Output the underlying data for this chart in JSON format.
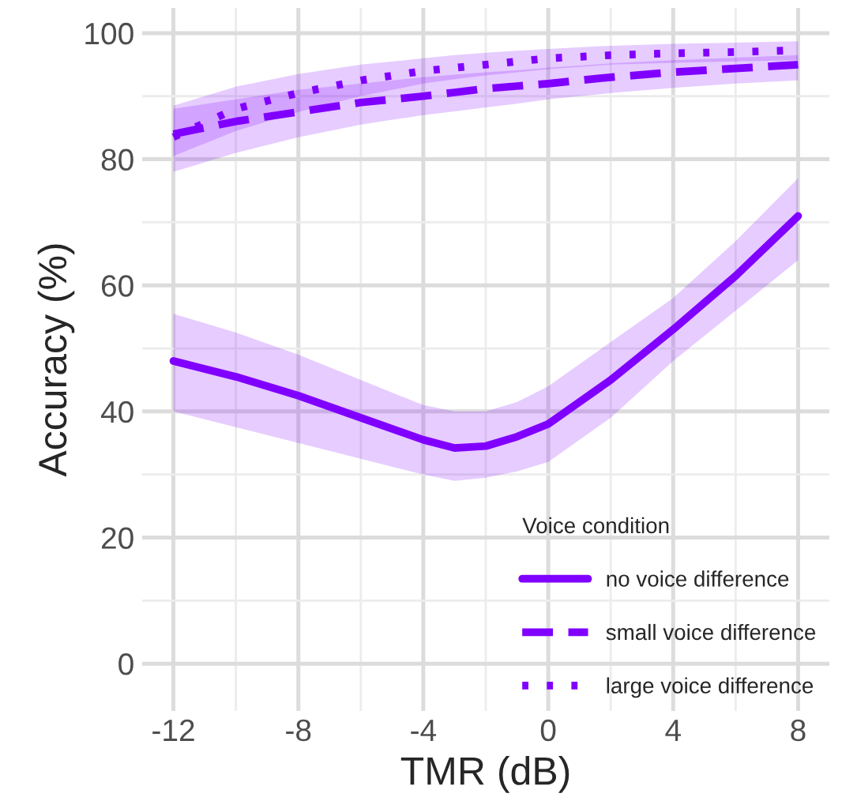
{
  "chart_data": {
    "type": "line",
    "xlabel": "TMR (dB)",
    "ylabel": "Accuracy (%)",
    "legend_title": "Voice condition",
    "x": [
      -12,
      -10,
      -8,
      -6,
      -4,
      -3,
      -2,
      -1,
      0,
      2,
      4,
      6,
      8
    ],
    "series": [
      {
        "name": "no voice difference",
        "color": "#8000ff",
        "line_style": "solid",
        "values": [
          48,
          45.5,
          42.5,
          39,
          35.5,
          34.2,
          34.5,
          36,
          38,
          45,
          53,
          61.5,
          71
        ],
        "lower": [
          40,
          37.5,
          35,
          32.5,
          30,
          29,
          29.5,
          30.5,
          32,
          39,
          48,
          56,
          64
        ],
        "upper": [
          55.5,
          52.5,
          49,
          45,
          41,
          40,
          40,
          41.5,
          44,
          51,
          58,
          67,
          77
        ]
      },
      {
        "name": "small voice difference",
        "color": "#8000ff",
        "line_style": "dashed",
        "values": [
          84,
          86,
          87.5,
          89,
          90,
          90.6,
          91.2,
          91.6,
          92,
          93,
          93.8,
          94.4,
          95
        ],
        "lower": [
          78,
          81,
          83.5,
          85.5,
          87,
          87.6,
          88.2,
          88.8,
          89.5,
          90.5,
          91.3,
          92,
          92.5
        ],
        "upper": [
          88,
          89.5,
          91,
          92,
          93,
          93.4,
          93.8,
          94.1,
          94.5,
          95.2,
          95.7,
          96.1,
          96.5
        ]
      },
      {
        "name": "large voice difference",
        "color": "#8000ff",
        "line_style": "dotted",
        "values": [
          83.5,
          88,
          90.5,
          92.5,
          94,
          94.5,
          95,
          95.5,
          96,
          96.5,
          96.8,
          97,
          97.3
        ],
        "lower": [
          80.5,
          84.5,
          87.5,
          90,
          92,
          92.7,
          93.3,
          93.8,
          94.3,
          95,
          95.3,
          95.5,
          95.7
        ],
        "upper": [
          88.5,
          91.5,
          93.5,
          95,
          96,
          96.5,
          96.9,
          97.2,
          97.5,
          98,
          98.3,
          98.5,
          98.7
        ]
      }
    ],
    "xlim": [
      -13,
      9
    ],
    "xticks": [
      -12,
      -8,
      -4,
      0,
      4,
      8
    ],
    "ylim": [
      -7.5,
      104
    ],
    "yticks": [
      0,
      20,
      40,
      60,
      80,
      100
    ],
    "grid": true,
    "legend": "bottom right"
  }
}
